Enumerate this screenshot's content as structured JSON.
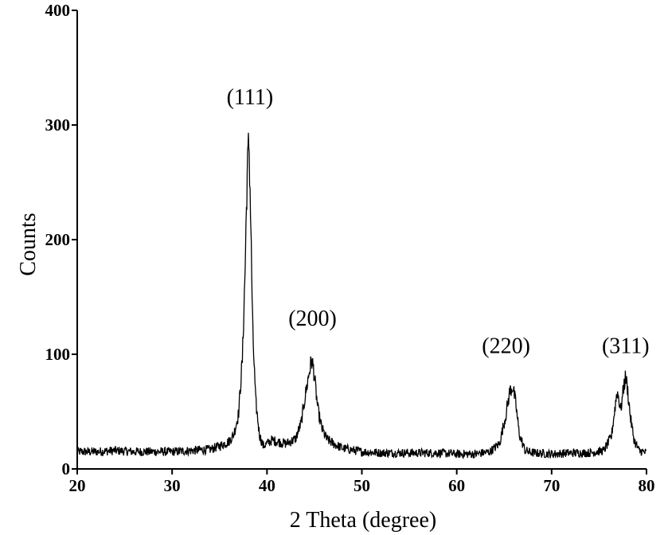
{
  "chart_data": {
    "type": "line",
    "title": "",
    "xlabel": "2 Theta  (degree)",
    "ylabel": "Counts",
    "xlim": [
      20,
      80
    ],
    "ylim": [
      0,
      400
    ],
    "x_ticks": [
      20,
      30,
      40,
      50,
      60,
      70,
      80
    ],
    "y_ticks": [
      0,
      100,
      200,
      300,
      400
    ],
    "grid": false,
    "line_color": "#000000",
    "annotations": [
      {
        "text": "(111)",
        "x": 38.2,
        "y": 318
      },
      {
        "text": "(200)",
        "x": 44.8,
        "y": 125
      },
      {
        "text": "(220)",
        "x": 65.2,
        "y": 101
      },
      {
        "text": "(311)",
        "x": 77.8,
        "y": 101
      }
    ],
    "series": [
      {
        "x": [
          20,
          22,
          24,
          26,
          28,
          30,
          32,
          34,
          35,
          36,
          36.5,
          37,
          37.4,
          37.7,
          37.9,
          38.1,
          38.3,
          38.5,
          38.8,
          39.2,
          39.6,
          40,
          40.5,
          41,
          42,
          43,
          43.6,
          44,
          44.4,
          44.7,
          44.9,
          45.1,
          45.4,
          45.8,
          46.3,
          47,
          48,
          50,
          52,
          55,
          58,
          60,
          62,
          63.5,
          64.5,
          65.2,
          65.6,
          65.9,
          66.2,
          66.6,
          67.2,
          68,
          70,
          72,
          74,
          75.5,
          76.3,
          76.7,
          76.9,
          77.1,
          77.3,
          77.6,
          77.8,
          78,
          78.3,
          78.7,
          79.2,
          80
        ],
        "y": [
          15,
          15,
          16,
          15,
          15,
          15,
          16,
          17,
          20,
          24,
          30,
          48,
          95,
          175,
          255,
          288,
          210,
          120,
          60,
          30,
          20,
          22,
          25,
          24,
          22,
          26,
          40,
          62,
          82,
          95,
          88,
          72,
          50,
          35,
          26,
          22,
          18,
          15,
          14,
          14,
          14,
          13,
          13,
          15,
          22,
          48,
          68,
          72,
          58,
          30,
          16,
          14,
          13,
          14,
          14,
          16,
          28,
          55,
          68,
          60,
          52,
          72,
          80,
          70,
          45,
          25,
          16,
          14
        ]
      }
    ]
  }
}
